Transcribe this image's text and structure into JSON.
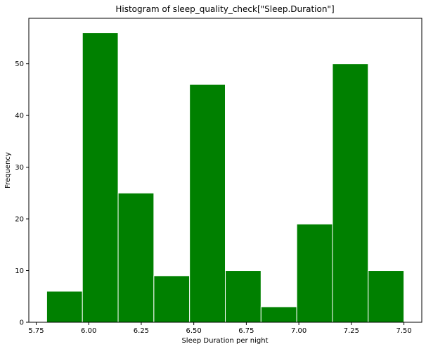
{
  "chart_data": {
    "type": "bar",
    "title": "Histogram of sleep_quality_check[\"Sleep.Duration\"]",
    "xlabel": "Sleep Duration per night",
    "ylabel": "Frequency",
    "bin_edges": [
      5.8,
      5.97,
      6.14,
      6.31,
      6.48,
      6.65,
      6.82,
      6.99,
      7.16,
      7.33,
      7.5
    ],
    "values": [
      6,
      56,
      25,
      9,
      46,
      10,
      3,
      19,
      50,
      10
    ],
    "xlim": [
      5.735,
      5.565
    ],
    "ylim": [
      0,
      58.8
    ],
    "xticks": [
      "5.75",
      "6.00",
      "6.25",
      "6.50",
      "6.75",
      "7.00",
      "7.25",
      "7.50"
    ],
    "xtick_values": [
      5.75,
      6.0,
      6.25,
      6.5,
      6.75,
      7.0,
      7.25,
      7.5
    ],
    "yticks": [
      "0",
      "10",
      "20",
      "30",
      "40",
      "50"
    ],
    "ytick_values": [
      0,
      10,
      20,
      30,
      40,
      50
    ],
    "bar_color": "#008000",
    "edge_color": "#ffffff",
    "grid": false
  }
}
